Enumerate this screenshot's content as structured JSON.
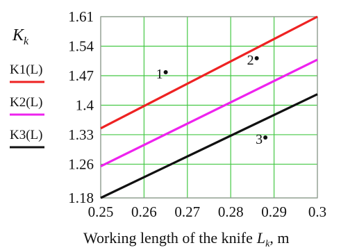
{
  "chart_data": {
    "type": "line",
    "ylabel_main": "K",
    "ylabel_sub": "k",
    "xlabel_text": "Working length of the knife",
    "xlabel_symbol": "L",
    "xlabel_symbol_sub": "k",
    "xlabel_unit": ", m",
    "xlim": [
      0.25,
      0.3
    ],
    "ylim": [
      1.18,
      1.61
    ],
    "x_ticks": [
      "0.25",
      "0.26",
      "0.27",
      "0.28",
      "0.29",
      "0.3"
    ],
    "y_ticks": [
      "1.61",
      "1.54",
      "1.47",
      "1.4",
      "1.33",
      "1.26",
      "1.18"
    ],
    "grid": true,
    "legend_placement": "left",
    "series": [
      {
        "name": "K1(L)",
        "color": "#ee2222",
        "x": [
          0.25,
          0.3
        ],
        "y": [
          1.345,
          1.61
        ]
      },
      {
        "name": "K2(L)",
        "color": "#ee22ee",
        "x": [
          0.25,
          0.3
        ],
        "y": [
          1.255,
          1.508
        ]
      },
      {
        "name": "K3(L)",
        "color": "#111111",
        "x": [
          0.25,
          0.3
        ],
        "y": [
          1.18,
          1.426
        ]
      }
    ],
    "annotations": [
      {
        "text": "1",
        "x": 0.265,
        "y": 1.475
      },
      {
        "text": "2",
        "x": 0.286,
        "y": 1.508
      },
      {
        "text": "3",
        "x": 0.288,
        "y": 1.32
      }
    ]
  }
}
